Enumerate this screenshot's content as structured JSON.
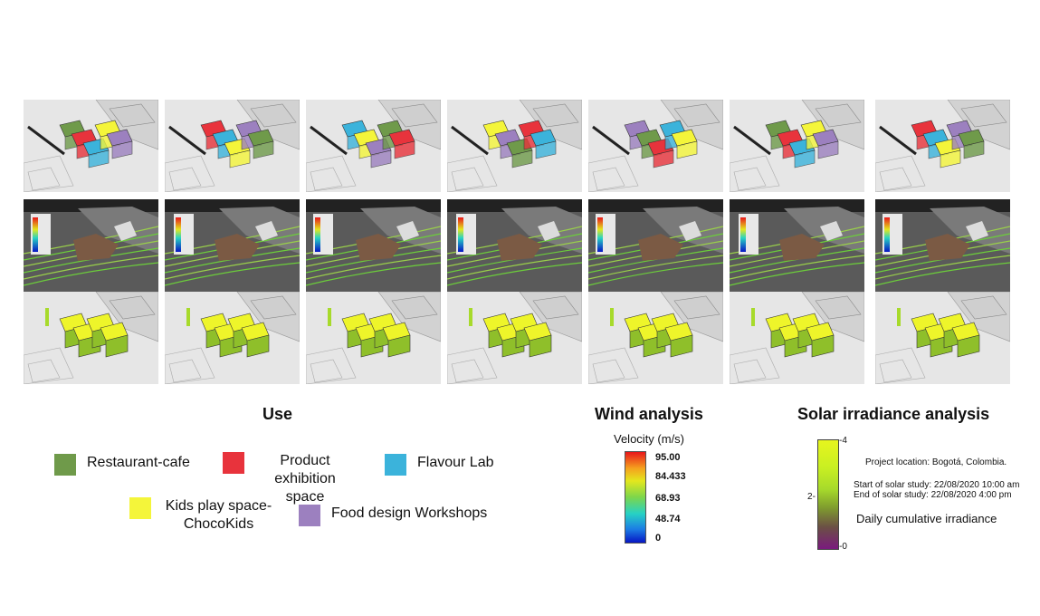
{
  "sections": {
    "use_title": "Use",
    "wind_title": "Wind analysis",
    "solar_title": "Solar irradiance analysis"
  },
  "use_legend": [
    {
      "label": "Restaurant-cafe",
      "color": "#6f9a4a"
    },
    {
      "label": "Product exhibition space",
      "color": "#e8333c"
    },
    {
      "label": "Flavour Lab",
      "color": "#3bb3db"
    },
    {
      "label": "Kids play space-ChocoKids",
      "color": "#f4f53a"
    },
    {
      "label": "Food design Workshops",
      "color": "#9c80bf"
    }
  ],
  "wind": {
    "unit_label": "Velocity (m/s)",
    "ticks": [
      "95.00",
      "84.433",
      "68.93",
      "48.74",
      "0"
    ]
  },
  "solar": {
    "location": "Project location: Bogotá, Colombia.",
    "start": "Start of solar study: 22/08/2020 10:00 am",
    "end": "End of solar study: 22/08/2020 4:00 pm",
    "measure": "Daily cumulative irradiance",
    "ticks": [
      "4",
      "2",
      "0"
    ]
  },
  "tiles": {
    "rows": [
      "use",
      "wind",
      "solar"
    ],
    "columns": 7
  }
}
